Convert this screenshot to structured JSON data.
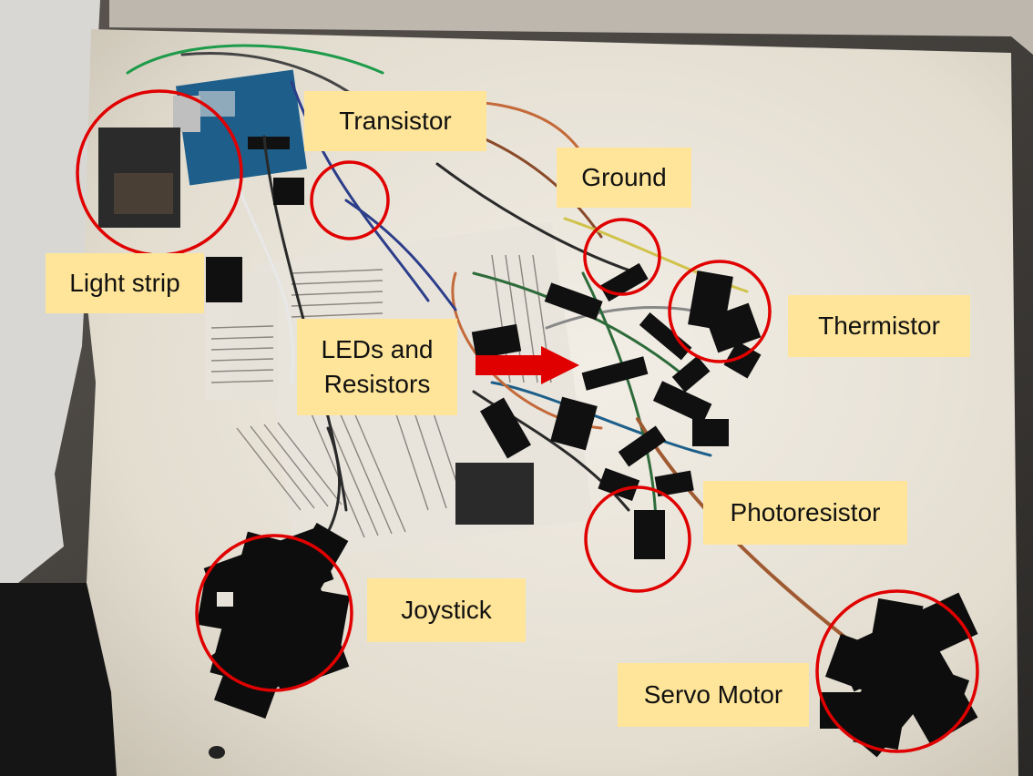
{
  "photo": {
    "subject": "breadboard-style electronics project mounted on a white board with taped wires"
  },
  "labels": {
    "transistor": "Transistor",
    "ground": "Ground",
    "light_strip": "Light strip",
    "thermistor": "Thermistor",
    "leds_line1": "LEDs and",
    "leds_line2": "Resistors",
    "photoresistor": "Photoresistor",
    "joystick": "Joystick",
    "servo_motor": "Servo Motor"
  },
  "colors": {
    "label_background": "#ffe599",
    "highlight_circle": "#e00000",
    "arrow": "#e00000",
    "board": "#ece7dc",
    "tape": "#101010"
  }
}
